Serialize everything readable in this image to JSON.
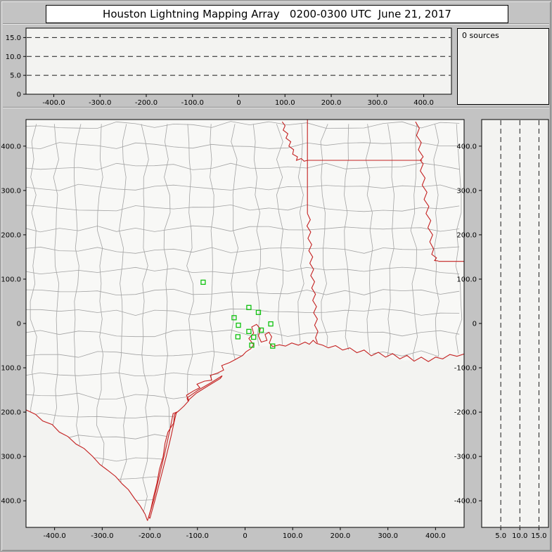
{
  "window": {
    "title": "Houston Lightning Mapping Array   0200-0300 UTC  June 21, 2017"
  },
  "sources_panel": {
    "label": "0 sources"
  },
  "colors": {
    "window_bg": "#c3c3c3",
    "panel_bg": "#f3f3f1",
    "land_fill": "#f8f8f6",
    "county_line": "#a3a3a3",
    "state_line": "#c42020",
    "station": "#0ec20e",
    "reference_line": "#1a1a1a"
  },
  "chart_data": {
    "type": "scatter",
    "title": "Houston Lightning Mapping Array 0200-0300 UTC June 21, 2017",
    "source_count": 0,
    "panels": [
      {
        "name": "altitude_vs_east_west_km",
        "type": "scatter",
        "x_range": [
          -460,
          460
        ],
        "y_range": [
          0,
          17.5
        ],
        "x_ticks": [
          -400,
          -300,
          -200,
          -100,
          0,
          100,
          200,
          300,
          400
        ],
        "x_tick_labels": [
          "-400.0",
          "-300.0",
          "-200.0",
          "-100.0",
          "0",
          "100.0",
          "200.0",
          "300.0",
          "400.0"
        ],
        "y_ticks": [
          0,
          5,
          10,
          15
        ],
        "y_tick_labels": [
          "0",
          "5.0",
          "10.0",
          "15.0"
        ],
        "dashed_y_lines": [
          5,
          10,
          15
        ],
        "points": []
      },
      {
        "name": "plan_view_map_km",
        "type": "scatter",
        "x_range": [
          -460,
          460
        ],
        "y_range": [
          -460,
          460
        ],
        "x_ticks": [
          -400,
          -300,
          -200,
          -100,
          0,
          100,
          200,
          300,
          400
        ],
        "x_tick_labels": [
          "-400.0",
          "-300.0",
          "-200.0",
          "-100.0",
          "0",
          "100.0",
          "200.0",
          "300.0",
          "400.0"
        ],
        "y_ticks": [
          -400,
          -300,
          -200,
          -100,
          0,
          100,
          200,
          300,
          400
        ],
        "y_tick_labels": [
          "-400.0",
          "-300.0",
          "-200.0",
          "-100.0",
          "0",
          "100.0",
          "200.0",
          "300.0",
          "400.0"
        ],
        "stations_km": [
          [
            -88,
            93
          ],
          [
            8,
            36
          ],
          [
            28,
            25
          ],
          [
            -23,
            13
          ],
          [
            -14,
            -4
          ],
          [
            8,
            -18
          ],
          [
            -15,
            -30
          ],
          [
            18,
            -31
          ],
          [
            34,
            -15
          ],
          [
            54,
            -1
          ],
          [
            58,
            -51
          ],
          [
            14,
            -49
          ]
        ],
        "points": []
      },
      {
        "name": "altitude_vs_north_south_km",
        "type": "scatter",
        "x_range": [
          0,
          17.5
        ],
        "y_range": [
          -460,
          460
        ],
        "x_ticks": [
          5,
          10,
          15
        ],
        "x_tick_labels": [
          "5.0",
          "10.0",
          "15.0"
        ],
        "y_ticks": [
          -400,
          -300,
          -200,
          -100,
          0,
          100,
          200,
          300,
          400
        ],
        "y_tick_labels": [
          "-400.0",
          "-300.0",
          "-200.0",
          "-100.0",
          "0",
          "100.0",
          "200.0",
          "300.0",
          "400.0"
        ],
        "dashed_x_lines": [
          5,
          10,
          15
        ],
        "points": []
      }
    ],
    "map_layers": {
      "county_grid_note": "procedural decorative approximation of county boundaries",
      "land_polygon": [
        [
          -460,
          460
        ],
        [
          460,
          460
        ],
        [
          460,
          -66
        ],
        [
          420,
          -72
        ],
        [
          380,
          -80
        ],
        [
          335,
          -84
        ],
        [
          300,
          -75
        ],
        [
          260,
          -66
        ],
        [
          220,
          -60
        ],
        [
          185,
          -57
        ],
        [
          150,
          -42
        ],
        [
          126,
          -42
        ],
        [
          98,
          -44
        ],
        [
          72,
          -48
        ],
        [
          55,
          -52
        ],
        [
          30,
          -50
        ],
        [
          5,
          -68
        ],
        [
          -18,
          -80
        ],
        [
          -45,
          -105
        ],
        [
          -70,
          -128
        ],
        [
          -95,
          -145
        ],
        [
          -120,
          -162
        ],
        [
          -148,
          -205
        ],
        [
          -162,
          -245
        ],
        [
          -172,
          -300
        ],
        [
          -185,
          -360
        ],
        [
          -198,
          -420
        ],
        [
          -205,
          -445
        ],
        [
          -220,
          -412
        ],
        [
          -245,
          -375
        ],
        [
          -272,
          -345
        ],
        [
          -305,
          -318
        ],
        [
          -338,
          -282
        ],
        [
          -372,
          -255
        ],
        [
          -405,
          -228
        ],
        [
          -440,
          -205
        ],
        [
          -460,
          -195
        ]
      ],
      "state_boundaries": [
        [
          [
            -205,
            -445
          ],
          [
            -198,
            -420
          ],
          [
            -192,
            -390
          ],
          [
            -185,
            -360
          ],
          [
            -180,
            -330
          ],
          [
            -172,
            -300
          ],
          [
            -168,
            -270
          ],
          [
            -162,
            -245
          ],
          [
            -150,
            -225
          ],
          [
            -148,
            -205
          ],
          [
            -138,
            -196
          ],
          [
            -128,
            -186
          ],
          [
            -118,
            -174
          ],
          [
            -123,
            -162
          ],
          [
            -108,
            -152
          ],
          [
            -95,
            -145
          ],
          [
            -101,
            -137
          ],
          [
            -85,
            -130
          ],
          [
            -70,
            -128
          ],
          [
            -73,
            -117
          ],
          [
            -58,
            -112
          ],
          [
            -45,
            -105
          ],
          [
            -49,
            -95
          ],
          [
            -32,
            -88
          ],
          [
            -18,
            -80
          ],
          [
            -5,
            -72
          ],
          [
            2,
            -64
          ],
          [
            12,
            -57
          ],
          [
            18,
            -48
          ],
          [
            8,
            -34
          ],
          [
            18,
            -22
          ],
          [
            14,
            -8
          ],
          [
            24,
            -2
          ],
          [
            32,
            -12
          ],
          [
            28,
            -28
          ],
          [
            34,
            -42
          ],
          [
            46,
            -38
          ],
          [
            42,
            -25
          ],
          [
            50,
            -20
          ],
          [
            56,
            -30
          ],
          [
            51,
            -44
          ],
          [
            58,
            -52
          ],
          [
            72,
            -48
          ],
          [
            85,
            -51
          ],
          [
            98,
            -44
          ],
          [
            112,
            -49
          ],
          [
            126,
            -42
          ],
          [
            135,
            -47
          ],
          [
            143,
            -38
          ],
          [
            150,
            -45
          ],
          [
            163,
            -49
          ],
          [
            175,
            -55
          ],
          [
            190,
            -50
          ],
          [
            205,
            -60
          ],
          [
            220,
            -55
          ],
          [
            235,
            -66
          ],
          [
            250,
            -60
          ],
          [
            265,
            -73
          ],
          [
            280,
            -65
          ],
          [
            295,
            -76
          ],
          [
            310,
            -68
          ],
          [
            325,
            -80
          ],
          [
            340,
            -72
          ],
          [
            355,
            -85
          ],
          [
            370,
            -76
          ],
          [
            385,
            -86
          ],
          [
            400,
            -76
          ],
          [
            415,
            -80
          ],
          [
            430,
            -70
          ],
          [
            445,
            -74
          ],
          [
            462,
            -68
          ]
        ],
        [
          [
            -460,
            -195
          ],
          [
            -440,
            -205
          ],
          [
            -425,
            -220
          ],
          [
            -405,
            -228
          ],
          [
            -390,
            -245
          ],
          [
            -372,
            -255
          ],
          [
            -355,
            -272
          ],
          [
            -338,
            -282
          ],
          [
            -320,
            -300
          ],
          [
            -305,
            -318
          ],
          [
            -290,
            -330
          ],
          [
            -272,
            -345
          ],
          [
            -258,
            -362
          ],
          [
            -245,
            -375
          ],
          [
            -232,
            -395
          ],
          [
            -220,
            -412
          ],
          [
            -210,
            -430
          ],
          [
            -205,
            -445
          ]
        ],
        [
          [
            -200,
            -440
          ],
          [
            -190,
            -402
          ],
          [
            -178,
            -352
          ],
          [
            -166,
            -302
          ],
          [
            -156,
            -257
          ],
          [
            -148,
            -218
          ],
          [
            -144,
            -200
          ],
          [
            -151,
            -203
          ],
          [
            -158,
            -241
          ],
          [
            -168,
            -290
          ],
          [
            -180,
            -344
          ],
          [
            -192,
            -399
          ],
          [
            -202,
            -436
          ],
          [
            -200,
            -440
          ]
        ],
        [
          [
            -122,
            -168
          ],
          [
            -98,
            -150
          ],
          [
            -72,
            -134
          ],
          [
            -48,
            -118
          ],
          [
            -52,
            -124
          ],
          [
            -78,
            -141
          ],
          [
            -102,
            -157
          ],
          [
            -120,
            -174
          ],
          [
            -122,
            -168
          ]
        ],
        [
          [
            131,
            460
          ],
          [
            131,
            248
          ]
        ],
        [
          [
            131,
            248
          ],
          [
            137,
            234
          ],
          [
            130,
            220
          ],
          [
            138,
            206
          ],
          [
            132,
            192
          ],
          [
            140,
            178
          ],
          [
            134,
            164
          ],
          [
            142,
            150
          ],
          [
            136,
            136
          ],
          [
            144,
            122
          ],
          [
            138,
            108
          ],
          [
            146,
            94
          ],
          [
            140,
            80
          ],
          [
            148,
            66
          ],
          [
            142,
            52
          ],
          [
            150,
            38
          ],
          [
            144,
            24
          ],
          [
            152,
            10
          ],
          [
            146,
            -4
          ],
          [
            153,
            -18
          ],
          [
            148,
            -32
          ],
          [
            152,
            -44
          ]
        ],
        [
          [
            78,
            455
          ],
          [
            84,
            446
          ],
          [
            80,
            436
          ],
          [
            90,
            428
          ],
          [
            86,
            418
          ],
          [
            96,
            410
          ],
          [
            92,
            400
          ],
          [
            102,
            392
          ],
          [
            100,
            382
          ],
          [
            110,
            376
          ],
          [
            108,
            368
          ],
          [
            118,
            372
          ],
          [
            124,
            366
          ],
          [
            131,
            368
          ]
        ],
        [
          [
            131,
            368
          ],
          [
            372,
            368
          ]
        ],
        [
          [
            358,
            455
          ],
          [
            366,
            440
          ],
          [
            360,
            424
          ],
          [
            370,
            408
          ],
          [
            364,
            392
          ],
          [
            374,
            376
          ],
          [
            368,
            368
          ],
          [
            374,
            360
          ],
          [
            368,
            344
          ],
          [
            378,
            328
          ],
          [
            372,
            312
          ],
          [
            382,
            296
          ],
          [
            376,
            280
          ],
          [
            386,
            264
          ],
          [
            380,
            248
          ],
          [
            390,
            232
          ],
          [
            384,
            216
          ],
          [
            394,
            200
          ],
          [
            388,
            184
          ],
          [
            396,
            168
          ],
          [
            392,
            156
          ],
          [
            402,
            148
          ],
          [
            398,
            142
          ],
          [
            406,
            141
          ]
        ],
        [
          [
            406,
            140
          ],
          [
            462,
            140
          ]
        ]
      ]
    }
  }
}
